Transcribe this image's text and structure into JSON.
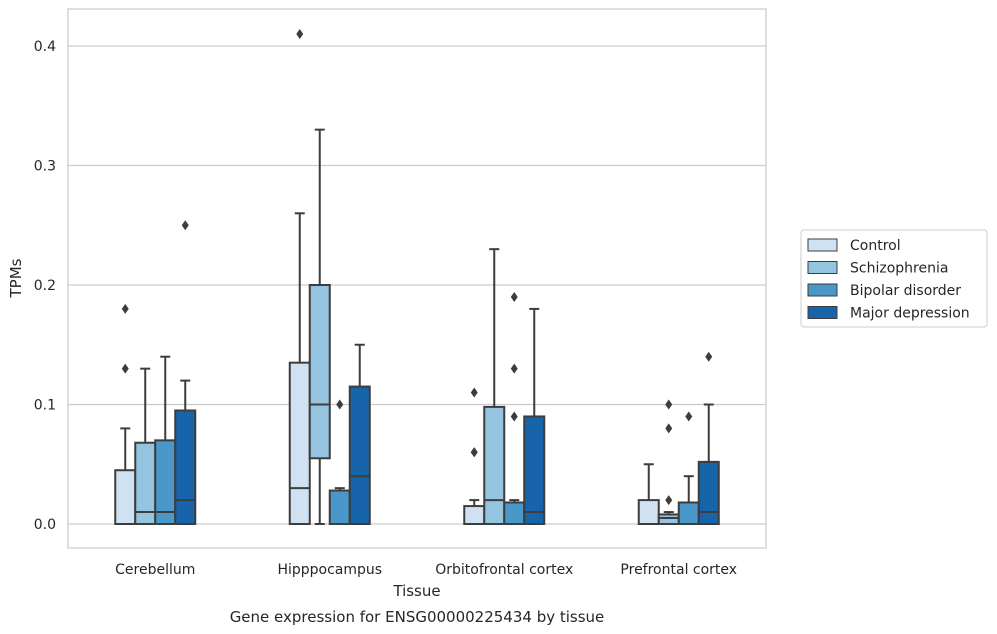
{
  "chart_data": {
    "type": "boxplot",
    "title": "Gene expression for ENSG00000225434 by tissue",
    "xlabel": "Tissue",
    "ylabel": "TPMs",
    "ylim": [
      -0.02,
      0.43
    ],
    "yticks": [
      "0.0",
      "0.1",
      "0.2",
      "0.3",
      "0.4"
    ],
    "grid": true,
    "legend_position": "right-outside",
    "categories": [
      "Cerebellum",
      "Hipppocampus",
      "Orbitofrontal cortex",
      "Prefrontal cortex"
    ],
    "series": [
      {
        "name": "Control",
        "color": "#d0e1f2",
        "boxes": [
          {
            "q1": 0.0,
            "median": 0.0,
            "q3": 0.045,
            "whisker_low": 0.0,
            "whisker_high": 0.08,
            "outliers": [
              0.13,
              0.18
            ]
          },
          {
            "q1": 0.0,
            "median": 0.03,
            "q3": 0.135,
            "whisker_low": 0.0,
            "whisker_high": 0.26,
            "outliers": [
              0.41
            ]
          },
          {
            "q1": 0.0,
            "median": 0.0,
            "q3": 0.015,
            "whisker_low": 0.0,
            "whisker_high": 0.02,
            "outliers": [
              0.06,
              0.06,
              0.11
            ]
          },
          {
            "q1": 0.0,
            "median": 0.0,
            "q3": 0.02,
            "whisker_low": 0.0,
            "whisker_high": 0.05,
            "outliers": []
          }
        ]
      },
      {
        "name": "Schizophrenia",
        "color": "#94c4df",
        "boxes": [
          {
            "q1": 0.0,
            "median": 0.01,
            "q3": 0.068,
            "whisker_low": 0.0,
            "whisker_high": 0.13,
            "outliers": []
          },
          {
            "q1": 0.055,
            "median": 0.1,
            "q3": 0.2,
            "whisker_low": 0.0,
            "whisker_high": 0.33,
            "outliers": []
          },
          {
            "q1": 0.0,
            "median": 0.02,
            "q3": 0.098,
            "whisker_low": 0.0,
            "whisker_high": 0.23,
            "outliers": []
          },
          {
            "q1": 0.0,
            "median": 0.005,
            "q3": 0.008,
            "whisker_low": 0.0,
            "whisker_high": 0.01,
            "outliers": [
              0.02,
              0.08,
              0.1
            ]
          }
        ]
      },
      {
        "name": "Bipolar disorder",
        "color": "#4a98c9",
        "boxes": [
          {
            "q1": 0.0,
            "median": 0.01,
            "q3": 0.07,
            "whisker_low": 0.0,
            "whisker_high": 0.14,
            "outliers": []
          },
          {
            "q1": 0.0,
            "median": 0.0,
            "q3": 0.028,
            "whisker_low": 0.0,
            "whisker_high": 0.03,
            "outliers": [
              0.1
            ]
          },
          {
            "q1": 0.0,
            "median": 0.0,
            "q3": 0.018,
            "whisker_low": 0.0,
            "whisker_high": 0.02,
            "outliers": [
              0.09,
              0.13,
              0.19
            ]
          },
          {
            "q1": 0.0,
            "median": 0.0,
            "q3": 0.018,
            "whisker_low": 0.0,
            "whisker_high": 0.04,
            "outliers": [
              0.09
            ]
          }
        ]
      },
      {
        "name": "Major depression",
        "color": "#1764ab",
        "boxes": [
          {
            "q1": 0.0,
            "median": 0.02,
            "q3": 0.095,
            "whisker_low": 0.0,
            "whisker_high": 0.12,
            "outliers": [
              0.25
            ]
          },
          {
            "q1": 0.0,
            "median": 0.04,
            "q3": 0.115,
            "whisker_low": 0.0,
            "whisker_high": 0.15,
            "outliers": []
          },
          {
            "q1": 0.0,
            "median": 0.01,
            "q3": 0.09,
            "whisker_low": 0.0,
            "whisker_high": 0.18,
            "outliers": []
          },
          {
            "q1": 0.0,
            "median": 0.01,
            "q3": 0.052,
            "whisker_low": 0.0,
            "whisker_high": 0.1,
            "outliers": [
              0.14
            ]
          }
        ]
      }
    ]
  }
}
